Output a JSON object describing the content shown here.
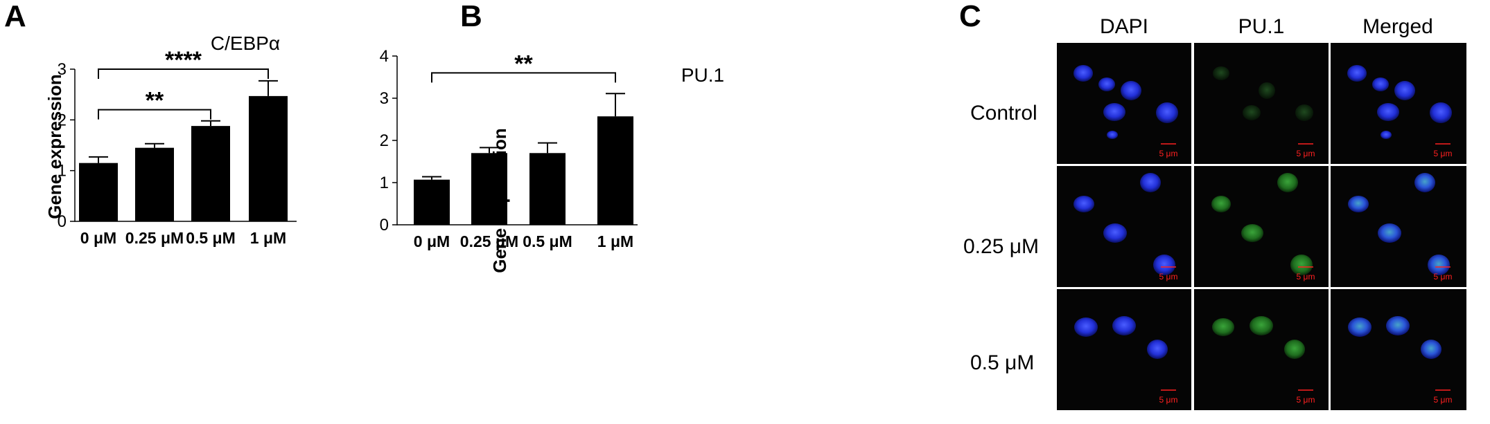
{
  "panels": {
    "a": "A",
    "b": "B",
    "c": "C"
  },
  "chart_data": [
    {
      "id": "A",
      "type": "bar",
      "title": "C/EBPα",
      "ylabel": "Gene expression",
      "xlabel": "",
      "categories": [
        "0 μM",
        "0.25 μM",
        "0.5 μM",
        "1 μM"
      ],
      "values": [
        1.15,
        1.45,
        1.88,
        2.47
      ],
      "errors": [
        0.12,
        0.08,
        0.1,
        0.3
      ],
      "ylim": [
        0,
        3
      ],
      "yticks": [
        0,
        1,
        2,
        3
      ],
      "grid": false,
      "significance": [
        {
          "from": 0,
          "to": 2,
          "label": "**",
          "level": 2.2
        },
        {
          "from": 0,
          "to": 3,
          "label": "****",
          "level": 3.0
        }
      ]
    },
    {
      "id": "B",
      "type": "bar",
      "title": "PU.1",
      "ylabel": "Gene expression",
      "xlabel": "",
      "categories": [
        "0 μM",
        "0.25 μM",
        "0.5 μM",
        "1 μM"
      ],
      "values": [
        1.07,
        1.7,
        1.7,
        2.57
      ],
      "errors": [
        0.07,
        0.13,
        0.24,
        0.54
      ],
      "ylim": [
        0,
        4
      ],
      "yticks": [
        0,
        1,
        2,
        3,
        4
      ],
      "grid": false,
      "significance": [
        {
          "from": 0,
          "to": 3,
          "label": "**",
          "level": 3.6
        }
      ]
    }
  ],
  "microscopy": {
    "columns": [
      "DAPI",
      "PU.1",
      "Merged"
    ],
    "rows": [
      "Control",
      "0.25 μM",
      "0.5 μM"
    ],
    "scale_bar": "5 μm"
  }
}
